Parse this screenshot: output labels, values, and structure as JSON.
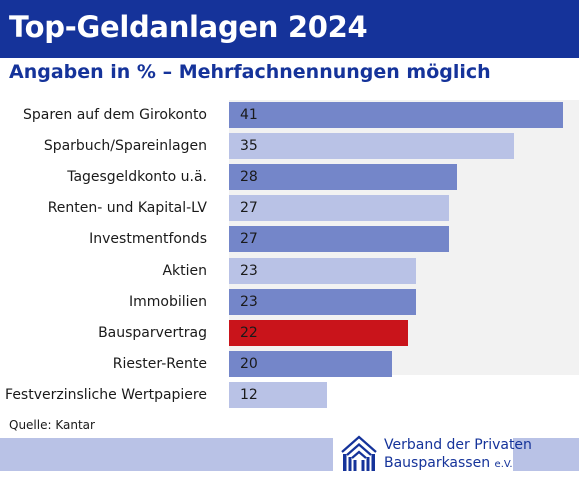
{
  "header": {
    "title": "Top-Geldanlagen 2024",
    "subtitle": "Angaben in % – Mehrfachnennungen möglich"
  },
  "chart_data": {
    "type": "bar",
    "orientation": "horizontal",
    "title": "Top-Geldanlagen 2024",
    "subtitle": "Angaben in % – Mehrfachnennungen möglich",
    "categories": [
      "Sparen auf dem Girokonto",
      "Sparbuch/Spareinlagen",
      "Tagesgeldkonto u.ä.",
      "Renten- und Kapital-LV",
      "Investmentfonds",
      "Aktien",
      "Immobilien",
      "Bausparvertrag",
      "Riester-Rente",
      "Festverzinsliche Wertpapiere"
    ],
    "values": [
      41,
      35,
      28,
      27,
      27,
      23,
      23,
      22,
      20,
      12
    ],
    "bar_colors": [
      "#7486c9",
      "#b9c2e6",
      "#7486c9",
      "#b9c2e6",
      "#7486c9",
      "#b9c2e6",
      "#7486c9",
      "#c9141b",
      "#7486c9",
      "#b9c2e6"
    ],
    "highlight_category": "Bausparvertrag",
    "highlight_color": "#c9141b",
    "xlim": [
      0,
      43
    ],
    "grid": false
  },
  "footer": {
    "source": "Quelle: Kantar",
    "org_line1": "Verband der Privaten",
    "org_line2_main": "Bausparkassen",
    "org_line2_suffix": "e.V."
  },
  "colors": {
    "title_bar": "#15339a",
    "accent_text": "#15339a",
    "bar_dark": "#7486c9",
    "bar_light": "#b9c2e6",
    "bar_highlight": "#c9141b",
    "footer_band": "#b9c2e6"
  },
  "icons": {
    "logo": "houses-logo-icon"
  }
}
